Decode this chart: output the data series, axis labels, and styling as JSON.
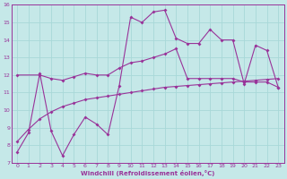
{
  "xlabel": "Windchill (Refroidissement éolien,°C)",
  "bg_color": "#c5e8e8",
  "line_color": "#993399",
  "grid_color": "#a8d8d8",
  "xlim": [
    -0.5,
    23.5
  ],
  "ylim": [
    7,
    16
  ],
  "xticks": [
    0,
    1,
    2,
    3,
    4,
    5,
    6,
    7,
    8,
    9,
    10,
    11,
    12,
    13,
    14,
    15,
    16,
    17,
    18,
    19,
    20,
    21,
    22,
    23
  ],
  "yticks": [
    7,
    8,
    9,
    10,
    11,
    12,
    13,
    14,
    15,
    16
  ],
  "line1_x": [
    0,
    1,
    2,
    3,
    4,
    5,
    6,
    7,
    8,
    9,
    10,
    11,
    12,
    13,
    14,
    15,
    16,
    17,
    18,
    19,
    20,
    21,
    22,
    23
  ],
  "line1_y": [
    7.6,
    8.7,
    12.1,
    8.8,
    7.4,
    8.6,
    9.6,
    9.2,
    8.6,
    11.4,
    15.3,
    15.0,
    15.6,
    15.7,
    14.1,
    13.8,
    13.8,
    14.6,
    14.0,
    14.0,
    11.5,
    13.7,
    13.4,
    11.3
  ],
  "line2_x": [
    0,
    2,
    3,
    4,
    5,
    6,
    7,
    8,
    9,
    10,
    11,
    12,
    13,
    14,
    15,
    16,
    17,
    18,
    19,
    20,
    21,
    22,
    23
  ],
  "line2_y": [
    12.0,
    12.0,
    11.8,
    11.7,
    11.9,
    12.1,
    12.0,
    12.0,
    12.4,
    12.7,
    12.8,
    13.0,
    13.2,
    13.5,
    11.8,
    11.8,
    11.8,
    11.8,
    11.8,
    11.6,
    11.6,
    11.6,
    11.3
  ],
  "line3_x": [
    0,
    1,
    2,
    3,
    4,
    5,
    6,
    7,
    8,
    9,
    10,
    11,
    12,
    13,
    14,
    15,
    16,
    17,
    18,
    19,
    20,
    21,
    22,
    23
  ],
  "line3_y": [
    8.2,
    8.9,
    9.5,
    9.9,
    10.2,
    10.4,
    10.6,
    10.7,
    10.8,
    10.9,
    11.0,
    11.1,
    11.2,
    11.3,
    11.35,
    11.4,
    11.45,
    11.5,
    11.55,
    11.6,
    11.65,
    11.7,
    11.75,
    11.8
  ]
}
